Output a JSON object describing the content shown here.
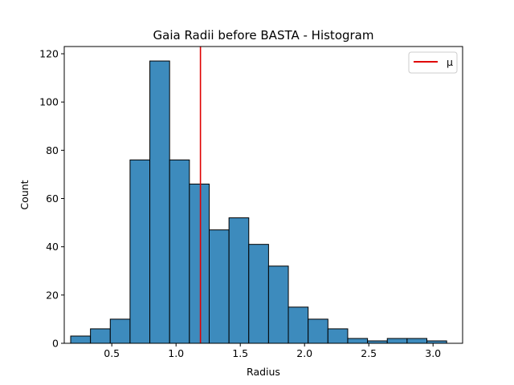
{
  "chart_data": {
    "type": "bar",
    "title": "Gaia Radii before BASTA - Histogram",
    "xlabel": "Radius",
    "ylabel": "Count",
    "xlim": [
      0.13,
      3.23
    ],
    "ylim": [
      0,
      123
    ],
    "xticks": [
      0.5,
      1.0,
      1.5,
      2.0,
      2.5,
      3.0
    ],
    "xtick_labels": [
      "0.5",
      "1.0",
      "1.5",
      "2.0",
      "2.5",
      "3.0"
    ],
    "yticks": [
      0,
      20,
      40,
      60,
      80,
      100,
      120
    ],
    "ytick_labels": [
      "0",
      "20",
      "40",
      "60",
      "80",
      "100",
      "120"
    ],
    "bins": {
      "edges": [
        0.18,
        0.334,
        0.488,
        0.642,
        0.796,
        0.95,
        1.104,
        1.258,
        1.412,
        1.566,
        1.72,
        1.874,
        2.028,
        2.182,
        2.336,
        2.49,
        2.644,
        2.798,
        2.952,
        3.106
      ],
      "counts": [
        3,
        6,
        10,
        76,
        117,
        76,
        66,
        47,
        52,
        41,
        32,
        15,
        10,
        6,
        2,
        1,
        2,
        2,
        1
      ]
    },
    "bar_color": "#3d8bbd",
    "mean_line": {
      "x": 1.19,
      "color": "#e00000"
    },
    "legend": {
      "entries": [
        {
          "label": "μ",
          "color": "#e00000"
        }
      ],
      "position": "top-right"
    },
    "grid": false
  }
}
